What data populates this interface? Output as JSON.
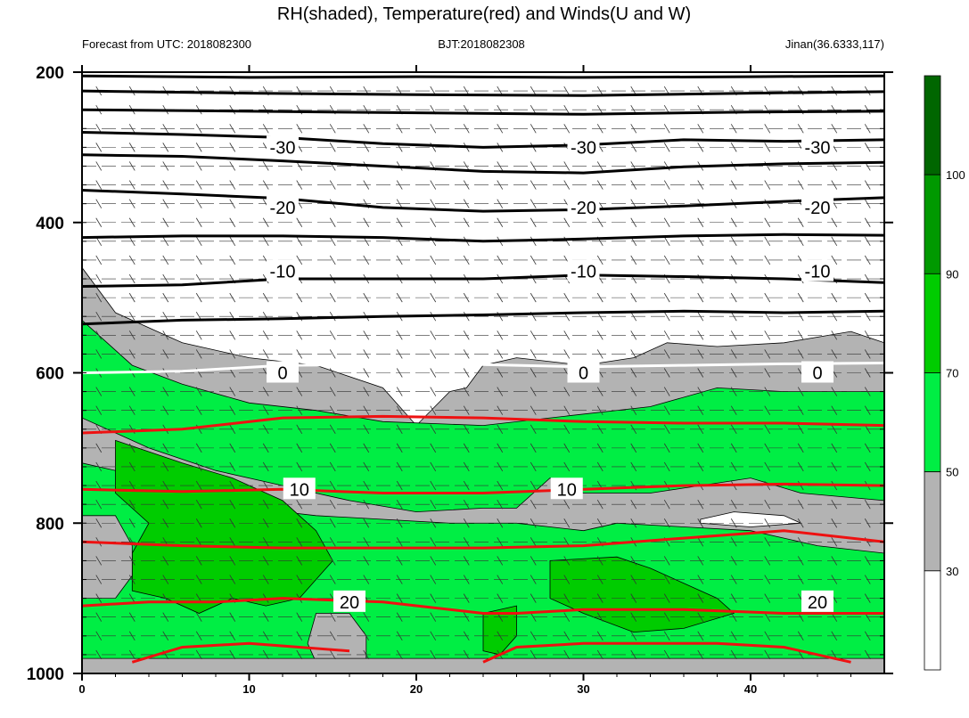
{
  "header": {
    "title": "RH(shaded), Temperature(red) and Winds(U and W)",
    "forecast": "Forecast from UTC: 2018082300",
    "bjt": "BJT:2018082308",
    "location": "Jinan(36.6333,117)"
  },
  "colors": {
    "rh_lt30": "#ffffff",
    "rh_30_50": "#b3b3b3",
    "rh_50_70": "#00ee44",
    "rh_70_90": "#00cc00",
    "rh_90_100": "#009900",
    "rh_gt100": "#006600",
    "temperature_line": "#ee1111",
    "temperature_zero_line": "#ffffff",
    "cold_isotherm_line": "#000000"
  },
  "chart_data": {
    "type": "heatmap",
    "title": "RH(shaded), Temperature(red) and Winds(U and W)",
    "x_range": [
      0,
      48
    ],
    "y_range": [
      1000,
      200
    ],
    "x_ticks": [
      "0",
      "10",
      "20",
      "30",
      "40"
    ],
    "x_tick_values": [
      0,
      10,
      20,
      30,
      40
    ],
    "y_ticks": [
      "200",
      "400",
      "600",
      "800",
      "1000"
    ],
    "y_tick_values": [
      200,
      400,
      600,
      800,
      1000
    ],
    "colorbar": {
      "levels": [
        "30",
        "50",
        "70",
        "90",
        "100"
      ],
      "level_values": [
        30,
        50,
        70,
        90,
        100
      ],
      "colors": [
        "#ffffff",
        "#b3b3b3",
        "#00ee44",
        "#00cc00",
        "#009900",
        "#006600"
      ]
    },
    "rh_fields": {
      "gray_upper": [
        [
          0,
          460
        ],
        [
          2,
          520
        ],
        [
          6,
          560
        ],
        [
          10,
          580
        ],
        [
          14,
          590
        ],
        [
          18,
          620
        ],
        [
          20,
          670
        ],
        [
          22,
          625
        ],
        [
          23,
          620
        ],
        [
          24,
          590
        ],
        [
          26,
          580
        ],
        [
          30,
          590
        ],
        [
          33,
          580
        ],
        [
          35,
          560
        ],
        [
          38,
          565
        ],
        [
          42,
          560
        ],
        [
          46,
          545
        ],
        [
          48,
          560
        ],
        [
          48,
          1000
        ],
        [
          0,
          1000
        ]
      ],
      "green_upper": [
        [
          0,
          530
        ],
        [
          3,
          590
        ],
        [
          6,
          615
        ],
        [
          10,
          640
        ],
        [
          14,
          650
        ],
        [
          18,
          665
        ],
        [
          24,
          670
        ],
        [
          28,
          660
        ],
        [
          34,
          645
        ],
        [
          38,
          620
        ],
        [
          42,
          625
        ],
        [
          48,
          625
        ],
        [
          48,
          1000
        ],
        [
          0,
          1000
        ]
      ],
      "gray_mid": [
        [
          0,
          660
        ],
        [
          4,
          700
        ],
        [
          8,
          730
        ],
        [
          12,
          750
        ],
        [
          16,
          770
        ],
        [
          20,
          785
        ],
        [
          24,
          780
        ],
        [
          26,
          780
        ],
        [
          28,
          740
        ],
        [
          30,
          760
        ],
        [
          34,
          760
        ],
        [
          37,
          750
        ],
        [
          40,
          740
        ],
        [
          43,
          760
        ],
        [
          48,
          770
        ],
        [
          48,
          840
        ],
        [
          44,
          830
        ],
        [
          40,
          810
        ],
        [
          36,
          805
        ],
        [
          32,
          800
        ],
        [
          30,
          810
        ],
        [
          26,
          800
        ],
        [
          22,
          800
        ],
        [
          18,
          795
        ],
        [
          14,
          790
        ],
        [
          10,
          780
        ],
        [
          6,
          760
        ],
        [
          2,
          730
        ],
        [
          0,
          720
        ]
      ],
      "green_core": [
        [
          2,
          690
        ],
        [
          6,
          720
        ],
        [
          9,
          740
        ],
        [
          12,
          770
        ],
        [
          14,
          810
        ],
        [
          15,
          850
        ],
        [
          13,
          900
        ],
        [
          11,
          910
        ],
        [
          9,
          900
        ],
        [
          7,
          920
        ],
        [
          5,
          900
        ],
        [
          3,
          890
        ],
        [
          3,
          840
        ],
        [
          4,
          800
        ],
        [
          2,
          760
        ]
      ],
      "gray_low_left": [
        [
          0,
          790
        ],
        [
          2,
          790
        ],
        [
          3,
          830
        ],
        [
          3,
          870
        ],
        [
          2,
          900
        ],
        [
          0,
          900
        ]
      ],
      "gray_low_mid": [
        [
          14,
          920
        ],
        [
          16,
          920
        ],
        [
          17,
          950
        ],
        [
          17,
          980
        ],
        [
          16,
          985
        ],
        [
          14,
          985
        ],
        [
          13.5,
          960
        ]
      ],
      "green_low_mid": [
        [
          24,
          920
        ],
        [
          26,
          910
        ],
        [
          26,
          950
        ],
        [
          25,
          975
        ],
        [
          24,
          970
        ]
      ],
      "green_right_core": [
        [
          28,
          850
        ],
        [
          32,
          845
        ],
        [
          34,
          860
        ],
        [
          36,
          880
        ],
        [
          38,
          900
        ],
        [
          39,
          920
        ],
        [
          36,
          940
        ],
        [
          33,
          945
        ],
        [
          30,
          920
        ],
        [
          28,
          900
        ]
      ],
      "white_low_right": [
        [
          37,
          795
        ],
        [
          39,
          785
        ],
        [
          42,
          790
        ],
        [
          43,
          800
        ],
        [
          40,
          805
        ],
        [
          37,
          800
        ]
      ],
      "gray_bottom": [
        [
          0,
          980
        ],
        [
          10,
          980
        ],
        [
          20,
          980
        ],
        [
          30,
          980
        ],
        [
          40,
          980
        ],
        [
          48,
          980
        ],
        [
          48,
          1000
        ],
        [
          0,
          1000
        ]
      ]
    },
    "isotherms": [
      {
        "label": "-30",
        "pressure": 300,
        "color": "#000000"
      },
      {
        "label": "-20",
        "pressure": 380,
        "color": "#000000"
      },
      {
        "label": "-10",
        "pressure": 465,
        "color": "#000000"
      },
      {
        "label": "0",
        "pressure": 600,
        "color": "#ffffff"
      },
      {
        "label": "10",
        "pressure": 755,
        "color": "#ee1111"
      },
      {
        "label": "20",
        "pressure": 905,
        "color": "#ee1111"
      }
    ],
    "isotherm_lines": [
      {
        "color": "#000000",
        "points": [
          [
            0,
            205
          ],
          [
            10,
            207
          ],
          [
            20,
            206
          ],
          [
            30,
            207
          ],
          [
            40,
            206
          ],
          [
            48,
            205
          ]
        ]
      },
      {
        "color": "#000000",
        "points": [
          [
            0,
            225
          ],
          [
            10,
            228
          ],
          [
            20,
            230
          ],
          [
            30,
            231
          ],
          [
            40,
            228
          ],
          [
            48,
            226
          ]
        ]
      },
      {
        "color": "#000000",
        "points": [
          [
            0,
            250
          ],
          [
            10,
            252
          ],
          [
            20,
            254
          ],
          [
            30,
            256
          ],
          [
            40,
            253
          ],
          [
            48,
            252
          ]
        ]
      },
      {
        "color": "#000000",
        "points": [
          [
            0,
            280
          ],
          [
            6,
            283
          ],
          [
            12,
            287
          ],
          [
            18,
            295
          ],
          [
            24,
            300
          ],
          [
            30,
            297
          ],
          [
            36,
            290
          ],
          [
            42,
            292
          ],
          [
            48,
            290
          ]
        ]
      },
      {
        "color": "#000000",
        "points": [
          [
            0,
            310
          ],
          [
            6,
            312
          ],
          [
            12,
            318
          ],
          [
            18,
            325
          ],
          [
            24,
            332
          ],
          [
            30,
            334
          ],
          [
            36,
            326
          ],
          [
            42,
            322
          ],
          [
            48,
            320
          ]
        ]
      },
      {
        "color": "#000000",
        "points": [
          [
            0,
            357
          ],
          [
            6,
            362
          ],
          [
            12,
            368
          ],
          [
            18,
            380
          ],
          [
            24,
            385
          ],
          [
            30,
            383
          ],
          [
            36,
            378
          ],
          [
            42,
            372
          ],
          [
            48,
            367
          ]
        ]
      },
      {
        "color": "#000000",
        "points": [
          [
            0,
            420
          ],
          [
            6,
            418
          ],
          [
            12,
            418
          ],
          [
            18,
            420
          ],
          [
            24,
            425
          ],
          [
            30,
            422
          ],
          [
            36,
            418
          ],
          [
            42,
            416
          ],
          [
            48,
            417
          ]
        ]
      },
      {
        "color": "#000000",
        "points": [
          [
            0,
            485
          ],
          [
            6,
            483
          ],
          [
            12,
            475
          ],
          [
            18,
            475
          ],
          [
            24,
            475
          ],
          [
            30,
            470
          ],
          [
            36,
            472
          ],
          [
            42,
            475
          ],
          [
            48,
            480
          ]
        ]
      },
      {
        "color": "#000000",
        "points": [
          [
            0,
            535
          ],
          [
            6,
            530
          ],
          [
            12,
            528
          ],
          [
            18,
            525
          ],
          [
            24,
            523
          ],
          [
            30,
            520
          ],
          [
            36,
            518
          ],
          [
            42,
            520
          ],
          [
            48,
            518
          ]
        ]
      },
      {
        "color": "#ffffff",
        "points": [
          [
            0,
            600
          ],
          [
            6,
            598
          ],
          [
            12,
            590
          ],
          [
            18,
            589
          ],
          [
            22,
            588
          ],
          [
            26,
            590
          ],
          [
            30,
            592
          ],
          [
            36,
            590
          ],
          [
            42,
            588
          ],
          [
            48,
            587
          ]
        ]
      },
      {
        "color": "#ee1111",
        "points": [
          [
            0,
            680
          ],
          [
            6,
            675
          ],
          [
            12,
            660
          ],
          [
            18,
            658
          ],
          [
            24,
            660
          ],
          [
            30,
            665
          ],
          [
            36,
            667
          ],
          [
            42,
            667
          ],
          [
            48,
            670
          ]
        ]
      },
      {
        "color": "#ee1111",
        "points": [
          [
            0,
            755
          ],
          [
            6,
            758
          ],
          [
            12,
            755
          ],
          [
            18,
            760
          ],
          [
            24,
            760
          ],
          [
            30,
            755
          ],
          [
            36,
            750
          ],
          [
            42,
            748
          ],
          [
            48,
            750
          ]
        ]
      },
      {
        "color": "#ee1111",
        "points": [
          [
            0,
            825
          ],
          [
            6,
            830
          ],
          [
            12,
            833
          ],
          [
            18,
            833
          ],
          [
            24,
            833
          ],
          [
            30,
            830
          ],
          [
            36,
            820
          ],
          [
            42,
            810
          ],
          [
            48,
            825
          ]
        ]
      },
      {
        "color": "#ee1111",
        "points": [
          [
            0,
            910
          ],
          [
            4,
            905
          ],
          [
            8,
            905
          ],
          [
            12,
            900
          ],
          [
            18,
            905
          ],
          [
            24,
            920
          ],
          [
            26,
            920
          ],
          [
            30,
            915
          ],
          [
            36,
            915
          ],
          [
            42,
            920
          ],
          [
            48,
            920
          ]
        ]
      },
      {
        "color": "#ee1111",
        "points": [
          [
            3,
            985
          ],
          [
            6,
            965
          ],
          [
            10,
            960
          ],
          [
            13,
            965
          ],
          [
            16,
            970
          ]
        ]
      },
      {
        "color": "#ee1111",
        "points": [
          [
            24,
            985
          ],
          [
            26,
            965
          ],
          [
            30,
            960
          ],
          [
            34,
            960
          ],
          [
            38,
            960
          ],
          [
            42,
            965
          ],
          [
            46,
            985
          ]
        ]
      }
    ]
  }
}
